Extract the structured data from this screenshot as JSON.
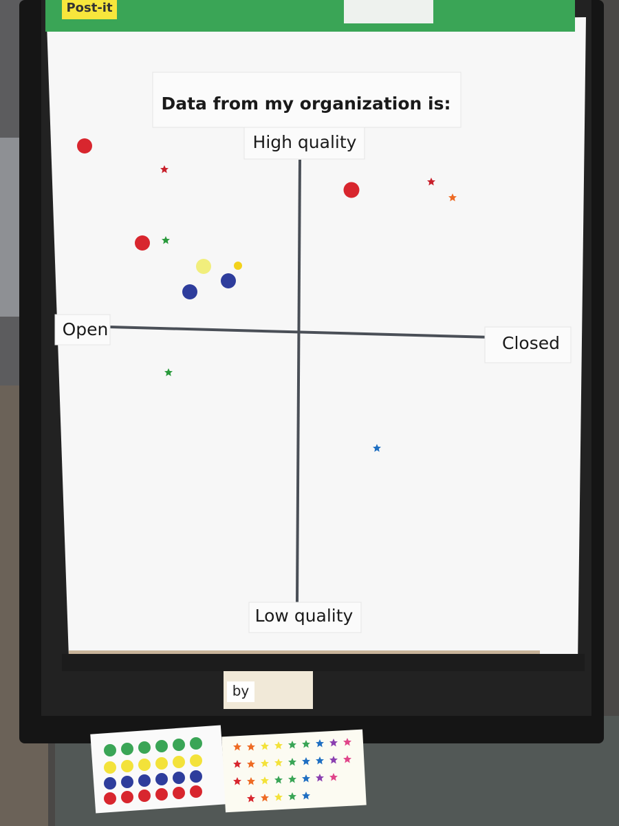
{
  "header": {
    "brand": "Post-it"
  },
  "chart": {
    "title": "Data from my organization is:",
    "top_label": "High quality",
    "bottom_label": "Low quality",
    "left_label": "Open",
    "right_label": "Closed"
  },
  "table_items": {
    "book_text": "by"
  }
}
